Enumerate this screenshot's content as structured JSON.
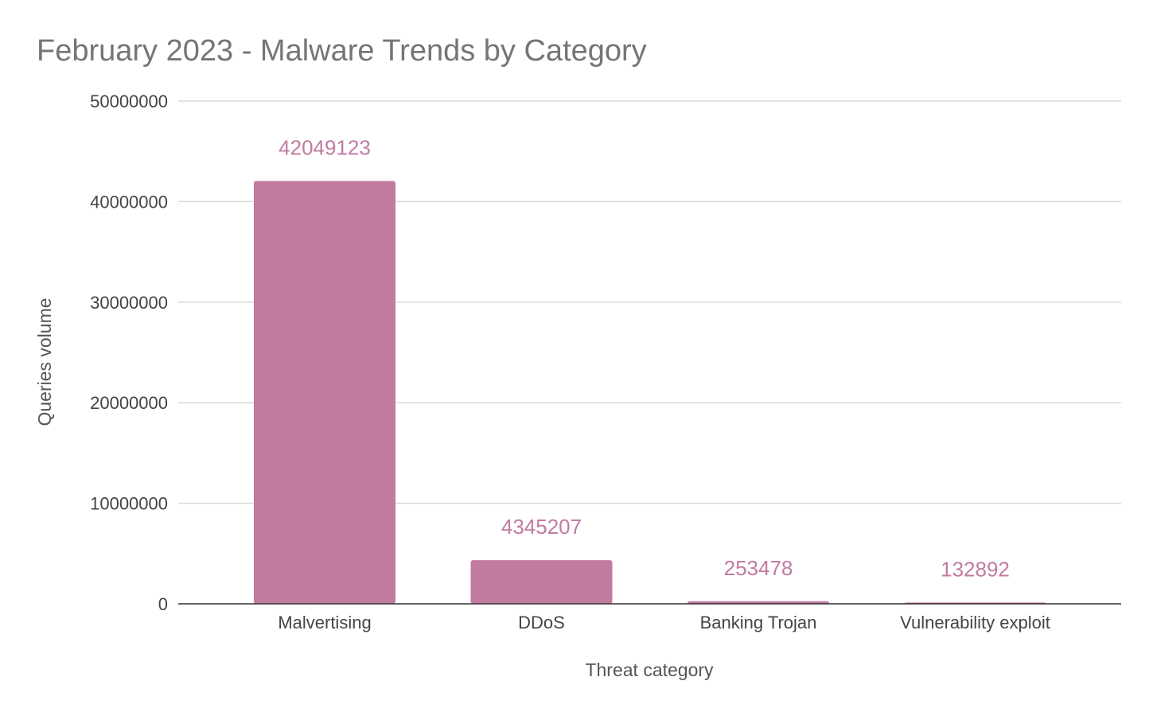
{
  "chart_data": {
    "type": "bar",
    "title": "February 2023 - Malware Trends by Category",
    "xlabel": "Threat category",
    "ylabel": "Queries volume",
    "categories": [
      "Malvertising",
      "DDoS",
      "Banking Trojan",
      "Vulnerability exploit"
    ],
    "values": [
      42049123,
      4345207,
      253478,
      132892
    ],
    "data_labels": [
      "42049123",
      "4345207",
      "253478",
      "132892"
    ],
    "ylim": [
      0,
      50000000
    ],
    "yticks": [
      0,
      10000000,
      20000000,
      30000000,
      40000000,
      50000000
    ],
    "ytick_labels": [
      "0",
      "10000000",
      "20000000",
      "30000000",
      "40000000",
      "50000000"
    ],
    "grid": true,
    "legend": "none",
    "bar_color": "#c27ba0",
    "label_color": "#c27ba0"
  }
}
